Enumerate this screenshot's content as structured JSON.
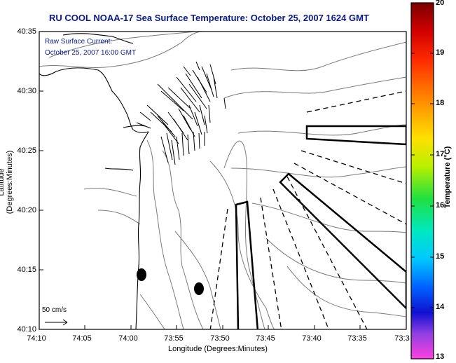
{
  "title": "RU COOL  NOAA-17  Sea Surface Temperature:  October 25, 2007 1624 GMT",
  "annotation": {
    "line1": "Raw Surface Current:",
    "line2": "October 25, 2007 16:00 GMT"
  },
  "scale_label": "50 cm/s",
  "axes": {
    "xlabel": "Longitude (Degrees:Minutes)",
    "ylabel": "Latitude (Degrees:Minutes)",
    "x_ticks": [
      "74:10",
      "74:05",
      "74:00",
      "73:55",
      "73:50",
      "73:45",
      "73:40",
      "73:35",
      "73:3"
    ],
    "y_ticks": [
      "40:35",
      "40:30",
      "40:25",
      "40:20",
      "40:15",
      "40:10"
    ]
  },
  "colorbar": {
    "label": "Temperature (°C)",
    "ticks": [
      "20",
      "19",
      "18",
      "17",
      "16",
      "15",
      "14",
      "13"
    ]
  },
  "colors": {
    "title": "#0a1a8c",
    "annotation": "#0a1a8c",
    "contour": "#7a7a7a",
    "coast": "#000000"
  }
}
